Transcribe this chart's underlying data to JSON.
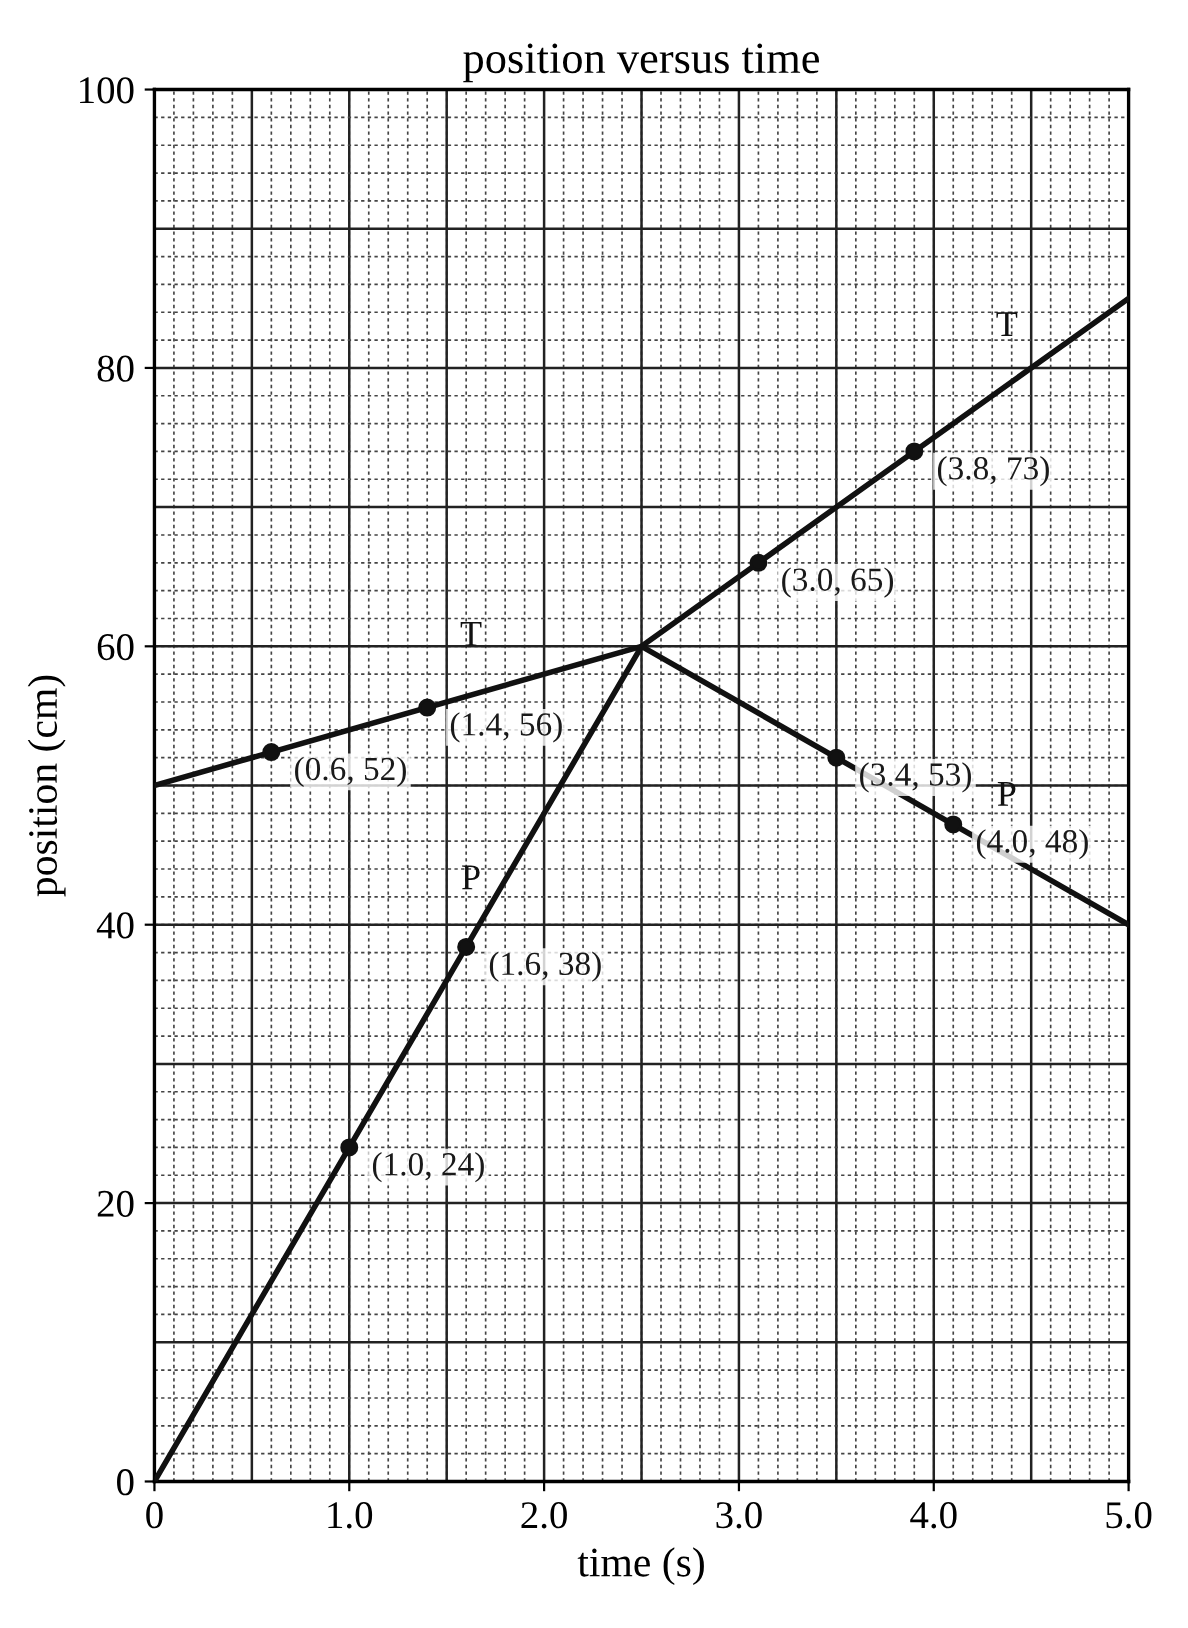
{
  "chart_data": {
    "type": "line",
    "title": "position versus time",
    "xlabel": "time (s)",
    "ylabel": "position (cm)",
    "xlim": [
      0,
      5
    ],
    "ylim": [
      0,
      100
    ],
    "xticks": [
      0,
      {
        "value": 1,
        "label": "1.0"
      },
      {
        "value": 2,
        "label": "2.0"
      },
      {
        "value": 3,
        "label": "3.0"
      },
      {
        "value": 4,
        "label": "4.0"
      },
      {
        "value": 5,
        "label": "5.0"
      }
    ],
    "yticks": [
      0,
      20,
      40,
      60,
      80,
      100
    ],
    "grid": true,
    "legend": false,
    "series": [
      {
        "name": "T",
        "color": "#111111",
        "marker": "none",
        "x": [
          0,
          2.5,
          5
        ],
        "values": [
          50,
          60,
          85
        ]
      },
      {
        "name": "P",
        "color": "#111111",
        "marker": "none",
        "x": [
          0,
          2.5,
          5
        ],
        "values": [
          0,
          60,
          40
        ]
      },
      {
        "color": "#111111",
        "type": "scatter",
        "marker": "circle",
        "x": [
          0.6,
          1.4,
          3.1,
          3.9,
          1.0,
          1.6,
          3.5,
          4.1
        ],
        "values": [
          52.4,
          55.6,
          66,
          74,
          24,
          38.4,
          52,
          47.2
        ]
      }
    ],
    "annotations": [
      {
        "text": "(0.6, 52)",
        "x": 0.6,
        "y": 52.4
      },
      {
        "text": "(1.4, 56)",
        "x": 1.4,
        "y": 55.6
      },
      {
        "text": "(3.0, 65)",
        "x": 3.1,
        "y": 66
      },
      {
        "text": "(3.8, 73)",
        "x": 3.9,
        "y": 74
      },
      {
        "text": "(1.0, 24)",
        "x": 1.0,
        "y": 24
      },
      {
        "text": "(1.6, 38)",
        "x": 1.6,
        "y": 38.4
      },
      {
        "text": "(3.4, 53)",
        "x": 3.5,
        "y": 52
      },
      {
        "text": "(4.0, 48)",
        "x": 4.1,
        "y": 47.2
      }
    ]
  }
}
